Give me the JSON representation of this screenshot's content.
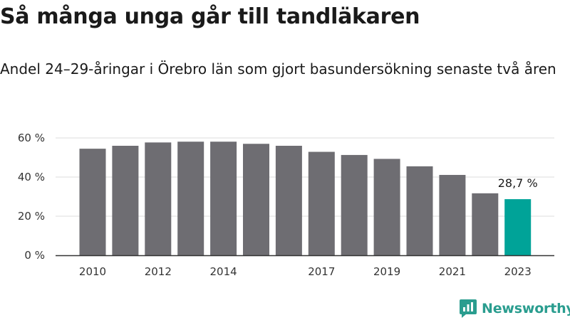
{
  "header": {
    "title": "Så många unga går till tandläkaren",
    "subtitle": "Andel 24–29-åringar i Örebro län som gjort basundersökning senaste två åren"
  },
  "brand": {
    "name": "Newsworthy",
    "color": "#2a9d8f"
  },
  "colors": {
    "bar": "#6e6d72",
    "highlight": "#00a398",
    "grid": "#dedede",
    "axis": "#333333"
  },
  "chart_data": {
    "type": "bar",
    "title": "Så många unga går till tandläkaren",
    "subtitle": "Andel 24–29-åringar i Örebro län som gjort basundersökning senaste två åren",
    "xlabel": "",
    "ylabel": "",
    "categories": [
      "2010",
      "2011",
      "2012",
      "2013",
      "2014",
      "2015",
      "2016",
      "2017",
      "2018",
      "2019",
      "2020",
      "2021",
      "2022",
      "2023"
    ],
    "values": [
      54.5,
      56.0,
      57.7,
      58.1,
      58.1,
      57.0,
      56.0,
      52.9,
      51.3,
      49.3,
      45.5,
      41.1,
      31.7,
      28.7
    ],
    "tick_labels_x": [
      "2010",
      "2012",
      "2014",
      "2017",
      "2019",
      "2021",
      "2023"
    ],
    "ylim": [
      0,
      60
    ],
    "yticks": [
      0,
      20,
      40,
      60
    ],
    "ytick_labels": [
      "0 %",
      "20 %",
      "40 %",
      "60 %"
    ],
    "grid": true,
    "highlight_category": "2023",
    "annotations": [
      {
        "category": "2023",
        "text": "28,7 %"
      }
    ]
  }
}
